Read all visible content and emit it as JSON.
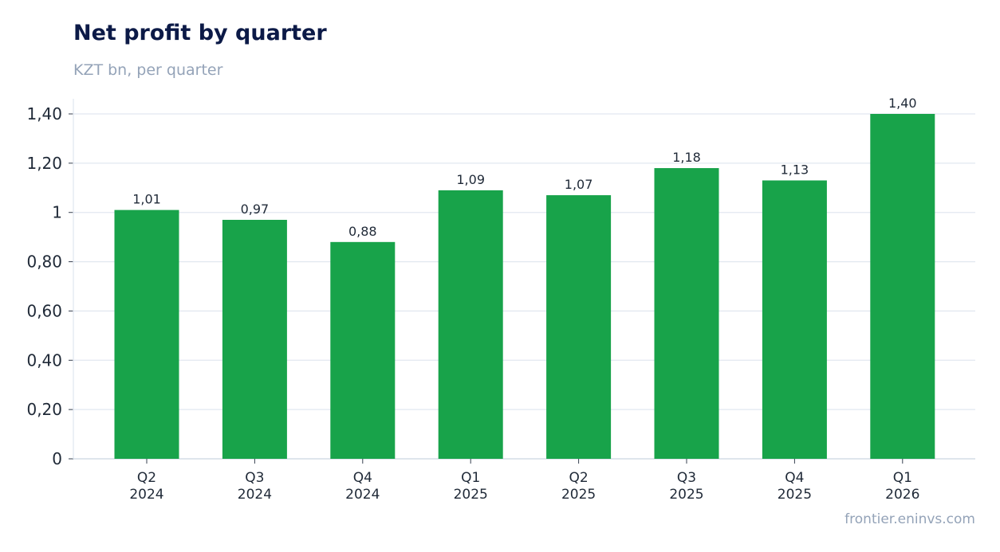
{
  "chart_data": {
    "type": "bar",
    "title": "Net profit by quarter",
    "subtitle": "KZT bn, per quarter",
    "categories": [
      [
        "Q2",
        "2024"
      ],
      [
        "Q3",
        "2024"
      ],
      [
        "Q4",
        "2024"
      ],
      [
        "Q1",
        "2025"
      ],
      [
        "Q2",
        "2025"
      ],
      [
        "Q3",
        "2025"
      ],
      [
        "Q4",
        "2025"
      ],
      [
        "Q1",
        "2026"
      ]
    ],
    "values": [
      1.01,
      0.97,
      0.88,
      1.09,
      1.07,
      1.18,
      1.13,
      1.4
    ],
    "value_labels": [
      "1,01",
      "0,97",
      "0,88",
      "1,09",
      "1,07",
      "1,18",
      "1,13",
      "1,40"
    ],
    "ylim": [
      0,
      1.4
    ],
    "yticks": [
      0,
      0.2,
      0.4,
      0.6,
      0.8,
      1.0,
      1.2,
      1.4
    ],
    "ytick_labels": [
      "0",
      "0,20",
      "0,40",
      "0,60",
      "0,80",
      "1",
      "1,20",
      "1,40"
    ],
    "grid": true,
    "bar_color": "#18a34a",
    "grid_color": "#e2e8f0"
  },
  "footer": "frontier.eninvs.com"
}
